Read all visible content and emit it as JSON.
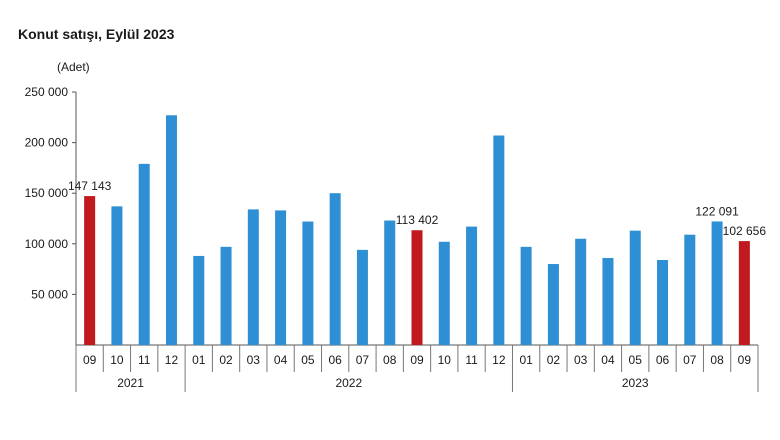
{
  "chart_data": {
    "type": "bar",
    "title": "Konut satışı, Eylül 2023",
    "unit_label": "(Adet)",
    "xlabel": "",
    "ylabel": "",
    "ylim": [
      0,
      250000
    ],
    "ytick_values": [
      50000,
      100000,
      150000,
      200000,
      250000
    ],
    "ytick_labels": [
      "50 000",
      "100 000",
      "150 000",
      "200 000",
      "250 000"
    ],
    "grid": false,
    "legend": "none",
    "colors": {
      "default": "#2f8fd4",
      "highlight": "#c0191f"
    },
    "categories": [
      "09",
      "10",
      "11",
      "12",
      "01",
      "02",
      "03",
      "04",
      "05",
      "06",
      "07",
      "08",
      "09",
      "10",
      "11",
      "12",
      "01",
      "02",
      "03",
      "04",
      "05",
      "06",
      "07",
      "08",
      "09"
    ],
    "years": [
      {
        "label": "2021",
        "count": 4
      },
      {
        "label": "2022",
        "count": 12
      },
      {
        "label": "2023",
        "count": 9
      }
    ],
    "values": [
      147143,
      137000,
      179000,
      227000,
      88000,
      97000,
      134000,
      133000,
      122000,
      150000,
      94000,
      123000,
      113402,
      102000,
      117000,
      207000,
      97000,
      80000,
      105000,
      86000,
      113000,
      84000,
      109000,
      122091,
      102656
    ],
    "highlight_indices": [
      0,
      12,
      24
    ],
    "data_labels": [
      {
        "index": 0,
        "text": "147 143"
      },
      {
        "index": 12,
        "text": "113 402"
      },
      {
        "index": 23,
        "text": "122 091"
      },
      {
        "index": 24,
        "text": "102 656"
      }
    ]
  }
}
